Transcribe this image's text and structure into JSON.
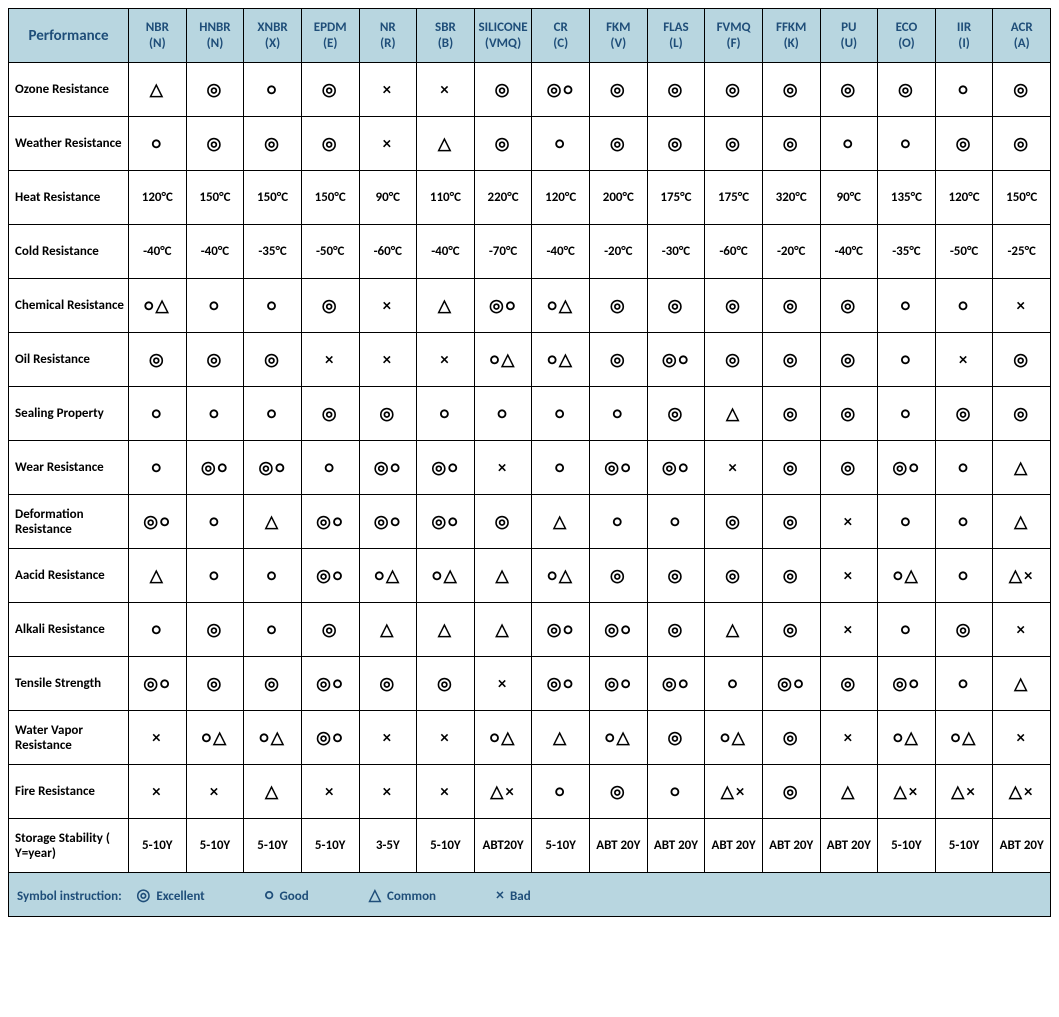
{
  "header_bg": "#b8d6e0",
  "header_fg": "#1f4e79",
  "border_color": "#000000",
  "symbols": {
    "excellent": "◎",
    "good": "○",
    "common": "△",
    "bad": "×"
  },
  "legend": {
    "intro": "Symbol instruction:",
    "items": [
      {
        "sym": "◎",
        "label": "Excellent"
      },
      {
        "sym": "○",
        "label": "Good"
      },
      {
        "sym": "△",
        "label": "Common"
      },
      {
        "sym": "×",
        "label": "Bad"
      }
    ]
  },
  "columns": [
    "Performance",
    "NBR (N)",
    "HNBR (N)",
    "XNBR (X)",
    "EPDM (E)",
    "NR (R)",
    "SBR (B)",
    "SILICONE (VMQ)",
    "CR (C)",
    "FKM (V)",
    "FLAS (L)",
    "FVMQ (F)",
    "FFKM (K)",
    "PU (U)",
    "ECO (O)",
    "IIR (I)",
    "ACR (A)"
  ],
  "rows": [
    {
      "label": "Ozone Resistance",
      "cells": [
        "△",
        "◎",
        "○",
        "◎",
        "×",
        "×",
        "◎",
        "◎○",
        "◎",
        "◎",
        "◎",
        "◎",
        "◎",
        "◎",
        "○",
        "◎"
      ]
    },
    {
      "label": "Weather Resistance",
      "cells": [
        "○",
        "◎",
        "◎",
        "◎",
        "×",
        "△",
        "◎",
        "○",
        "◎",
        "◎",
        "◎",
        "◎",
        "○",
        "○",
        "◎",
        "◎"
      ]
    },
    {
      "label": "Heat Resistance",
      "cells": [
        "120°C",
        "150°C",
        "150°C",
        "150°C",
        "90°C",
        "110°C",
        "220°C",
        "120°C",
        "200°C",
        "175°C",
        "175°C",
        "320°C",
        "90°C",
        "135°C",
        "120°C",
        "150°C"
      ]
    },
    {
      "label": "Cold Resistance",
      "cells": [
        "-40°C",
        "-40°C",
        "-35°C",
        "-50°C",
        "-60°C",
        "-40°C",
        "-70°C",
        "-40°C",
        "-20°C",
        "-30°C",
        "-60°C",
        "-20°C",
        "-40°C",
        "-35°C",
        "-50°C",
        "-25°C"
      ]
    },
    {
      "label": "Chemical Resistance",
      "cells": [
        "○△",
        "○",
        "○",
        "◎",
        "×",
        "△",
        "◎○",
        "○△",
        "◎",
        "◎",
        "◎",
        "◎",
        "◎",
        "○",
        "○",
        "×"
      ]
    },
    {
      "label": "Oil Resistance",
      "cells": [
        "◎",
        "◎",
        "◎",
        "×",
        "×",
        "×",
        "○△",
        "○△",
        "◎",
        "◎○",
        "◎",
        "◎",
        "◎",
        "○",
        "×",
        "◎"
      ]
    },
    {
      "label": "Sealing Property",
      "cells": [
        "○",
        "○",
        "○",
        "◎",
        "◎",
        "○",
        "○",
        "○",
        "○",
        "◎",
        "△",
        "◎",
        "◎",
        "○",
        "◎",
        "◎"
      ]
    },
    {
      "label": "Wear Resistance",
      "cells": [
        "○",
        "◎○",
        "◎○",
        "○",
        "◎○",
        "◎○",
        "×",
        "○",
        "◎○",
        "◎○",
        "×",
        "◎",
        "◎",
        "◎○",
        "○",
        "△"
      ]
    },
    {
      "label": "Deformation Resistance",
      "cells": [
        "◎○",
        "○",
        "△",
        "◎○",
        "◎○",
        "◎○",
        "◎",
        "△",
        "○",
        "○",
        "◎",
        "◎",
        "×",
        "○",
        "○",
        "△"
      ]
    },
    {
      "label": "Aacid Resistance",
      "cells": [
        "△",
        "○",
        "○",
        "◎○",
        "○△",
        "○△",
        "△",
        "○△",
        "◎",
        "◎",
        "◎",
        "◎",
        "×",
        "○△",
        "○",
        "△×"
      ]
    },
    {
      "label": "Alkali Resistance",
      "cells": [
        "○",
        "◎",
        "○",
        "◎",
        "△",
        "△",
        "△",
        "◎○",
        "◎○",
        "◎",
        "△",
        "◎",
        "×",
        "○",
        "◎",
        "×"
      ]
    },
    {
      "label": "Tensile Strength",
      "cells": [
        "◎○",
        "◎",
        "◎",
        "◎○",
        "◎",
        "◎",
        "×",
        "◎○",
        "◎○",
        "◎○",
        "○",
        "◎○",
        "◎",
        "◎○",
        "○",
        "△"
      ]
    },
    {
      "label": "Water Vapor Resistance",
      "cells": [
        "×",
        "○△",
        "○△",
        "◎○",
        "×",
        "×",
        "○△",
        "△",
        "○△",
        "◎",
        "○△",
        "◎",
        "×",
        "○△",
        "○△",
        "×"
      ]
    },
    {
      "label": "Fire Resistance",
      "cells": [
        "×",
        "×",
        "△",
        "×",
        "×",
        "×",
        "△×",
        "○",
        "◎",
        "○",
        "△×",
        "◎",
        "△",
        "△×",
        "△×",
        "△×"
      ]
    },
    {
      "label": "Storage Stability ( Y=year)",
      "cells": [
        "5-10Y",
        "5-10Y",
        "5-10Y",
        "5-10Y",
        "3-5Y",
        "5-10Y",
        "ABT20Y",
        "5-10Y",
        "ABT 20Y",
        "ABT 20Y",
        "ABT 20Y",
        "ABT 20Y",
        "ABT 20Y",
        "5-10Y",
        "5-10Y",
        "ABT 20Y"
      ]
    }
  ]
}
